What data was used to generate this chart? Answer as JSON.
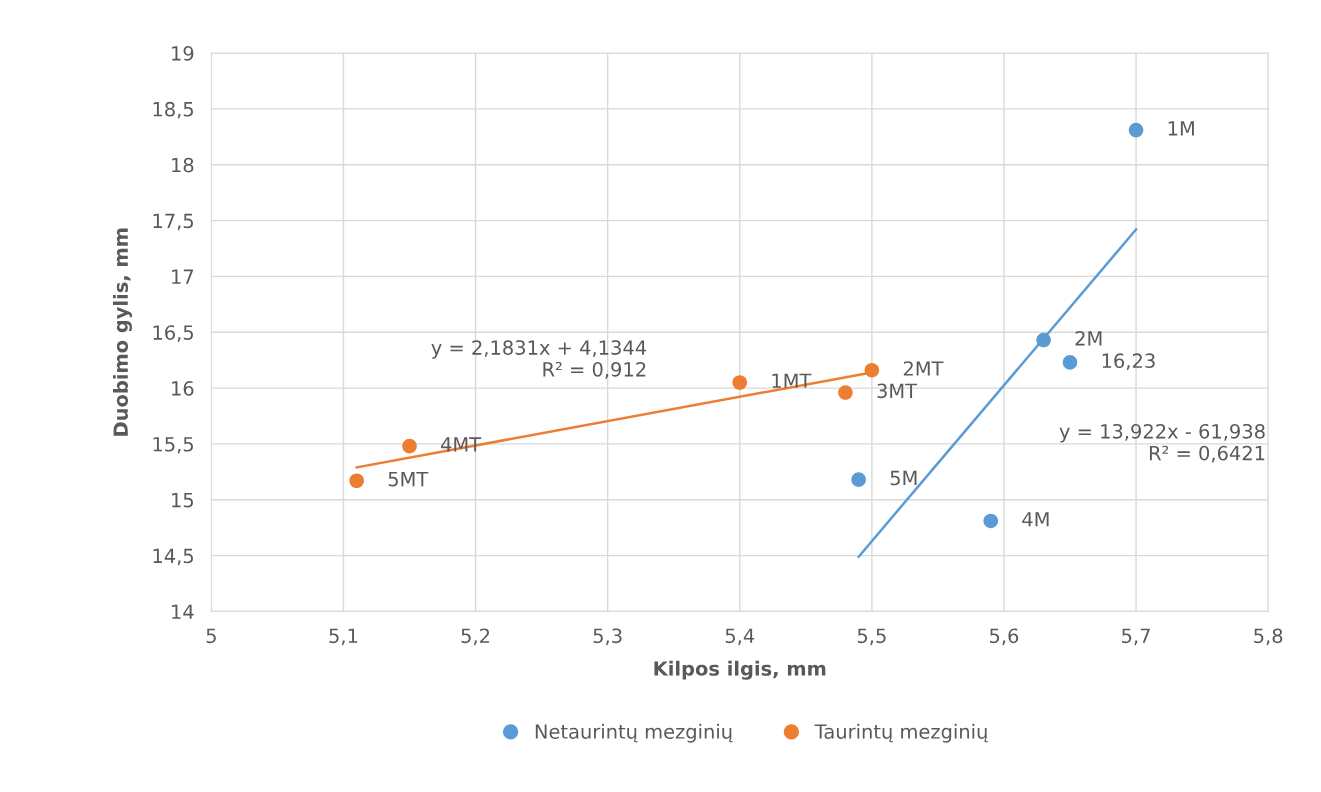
{
  "chart_data": {
    "type": "scatter",
    "xlabel": "Kilpos ilgis, mm",
    "ylabel": "Duobimo gylis, mm",
    "xlim": [
      5,
      5.8
    ],
    "xticks": [
      5,
      {
        "value": 5.1,
        "label": "5,1"
      },
      {
        "value": 5.2,
        "label": "5,2"
      },
      {
        "value": 5.3,
        "label": "5,3"
      },
      {
        "value": 5.4,
        "label": "5,4"
      },
      {
        "value": 5.5,
        "label": "5,5"
      },
      {
        "value": 5.6,
        "label": "5,6"
      },
      {
        "value": 5.7,
        "label": "5,7"
      },
      {
        "value": 5.8,
        "label": "5,8"
      }
    ],
    "ylim": [
      14,
      19
    ],
    "yticks": [
      14,
      {
        "value": 14.5,
        "label": "14,5"
      },
      15,
      {
        "value": 15.5,
        "label": "15,5"
      },
      16,
      {
        "value": 16.5,
        "label": "16,5"
      },
      17,
      {
        "value": 17.5,
        "label": "17,5"
      },
      18,
      {
        "value": 18.5,
        "label": "18,5"
      },
      19
    ],
    "grid": true,
    "legend": "bottom",
    "marker": "circle",
    "series": [
      {
        "name": "Netaurintų mezginių",
        "color": "#5b9bd5",
        "x": [
          5.7,
          5.63,
          5.65,
          5.49,
          5.59
        ],
        "values": [
          18.31,
          16.43,
          16.23,
          15.18,
          14.81
        ]
      },
      {
        "name": "Taurintų mezginių",
        "color": "#ed7d31",
        "x": [
          5.4,
          5.5,
          5.48,
          5.15,
          5.11
        ],
        "values": [
          16.05,
          16.16,
          15.96,
          15.48,
          15.17
        ]
      },
      {
        "type": "line",
        "marker": "none",
        "color": "#5b9bd5",
        "x": [
          5.49,
          5.7
        ],
        "values": [
          14.49,
          17.42
        ]
      },
      {
        "type": "line",
        "marker": "none",
        "color": "#ed7d31",
        "x": [
          5.11,
          5.5
        ],
        "values": [
          15.29,
          16.14
        ]
      }
    ],
    "annotations": [
      "y = 13,922x - 61,938\nR² = 0,6421",
      "y = 2,1831x + 4,1344\nR² = 0,912",
      {
        "text": "1M",
        "x": 5.7,
        "y": 18.31
      },
      {
        "text": "2M",
        "x": 5.63,
        "y": 16.43
      },
      {
        "text": "16,23",
        "x": 5.65,
        "y": 16.23
      },
      {
        "text": "5M",
        "x": 5.49,
        "y": 15.18
      },
      {
        "text": "4M",
        "x": 5.59,
        "y": 14.81
      },
      {
        "text": "1MT",
        "x": 5.4,
        "y": 16.05
      },
      {
        "text": "2MT",
        "x": 5.5,
        "y": 16.16
      },
      {
        "text": "3MT",
        "x": 5.48,
        "y": 15.96
      },
      {
        "text": "4MT",
        "x": 5.15,
        "y": 15.48
      },
      {
        "text": "5MT",
        "x": 5.11,
        "y": 15.17
      }
    ]
  }
}
